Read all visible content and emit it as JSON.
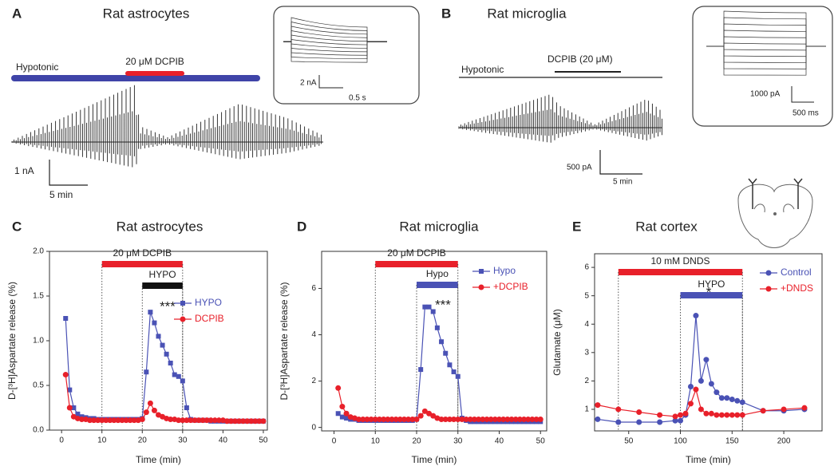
{
  "panel_a": {
    "letter": "A",
    "title": "Rat astrocytes",
    "solution": "Hypotonic",
    "drug": "20 μM DCPIB",
    "scale_y": "1 nA",
    "scale_x": "5 min",
    "inset_y": "2 nA",
    "inset_x": "0.5 s"
  },
  "panel_b": {
    "letter": "B",
    "title": "Rat microglia",
    "solution": "Hypotonic",
    "drug": "DCPIB (20 μM)",
    "scale_y": "500 pA",
    "scale_x": "5 min",
    "inset_y": "1000 pA",
    "inset_x": "500 ms"
  },
  "chart_data": [
    {
      "type": "line",
      "panel": "C",
      "title": "Rat astrocytes",
      "x_label": "Time (min)",
      "y_label": "D-[³H]Aspartate release (%)",
      "xlim": [
        -3,
        51
      ],
      "ylim": [
        0,
        2
      ],
      "xticks": [
        0,
        10,
        20,
        30,
        40,
        50
      ],
      "yticks": [
        {
          "value": 0,
          "label": "0.0"
        },
        {
          "value": 0.5,
          "label": "0.5"
        },
        {
          "value": 1,
          "label": "1.0"
        },
        {
          "value": 1.5,
          "label": "1.5"
        },
        {
          "value": 2,
          "label": "2.0"
        }
      ],
      "bars": [
        {
          "label": "20 μM DCPIB",
          "start": 10,
          "end": 30,
          "color": "#e8202a"
        },
        {
          "label": "HYPO",
          "start": 20,
          "end": 30,
          "color": "#111111"
        }
      ],
      "annotations": [
        "***"
      ],
      "x": [
        1,
        2,
        3,
        4,
        5,
        6,
        7,
        8,
        9,
        10,
        11,
        12,
        13,
        14,
        15,
        16,
        17,
        18,
        19,
        20,
        21,
        22,
        23,
        24,
        25,
        26,
        27,
        28,
        29,
        30,
        31,
        32,
        33,
        34,
        35,
        36,
        37,
        38,
        39,
        40,
        41,
        42,
        43,
        44,
        45,
        46,
        47,
        48,
        49,
        50
      ],
      "series": [
        {
          "name": "HYPO",
          "color": "#4a52b5",
          "marker": "square",
          "values": [
            1.25,
            0.45,
            0.25,
            0.18,
            0.15,
            0.14,
            0.13,
            0.13,
            0.12,
            0.12,
            0.12,
            0.12,
            0.12,
            0.12,
            0.12,
            0.12,
            0.12,
            0.12,
            0.12,
            0.13,
            0.65,
            1.32,
            1.2,
            1.05,
            0.95,
            0.85,
            0.75,
            0.62,
            0.6,
            0.55,
            0.25,
            0.12,
            0.11,
            0.11,
            0.11,
            0.11,
            0.1,
            0.1,
            0.1,
            0.1,
            0.1,
            0.1,
            0.1,
            0.1,
            0.1,
            0.1,
            0.1,
            0.1,
            0.1,
            0.1
          ]
        },
        {
          "name": "DCPIB",
          "color": "#e8202a",
          "marker": "circle",
          "values": [
            0.62,
            0.25,
            0.15,
            0.13,
            0.12,
            0.12,
            0.11,
            0.11,
            0.11,
            0.11,
            0.11,
            0.11,
            0.11,
            0.11,
            0.11,
            0.11,
            0.11,
            0.11,
            0.11,
            0.12,
            0.2,
            0.3,
            0.22,
            0.17,
            0.15,
            0.13,
            0.12,
            0.12,
            0.11,
            0.11,
            0.11,
            0.11,
            0.11,
            0.11,
            0.11,
            0.11,
            0.11,
            0.11,
            0.11,
            0.11,
            0.1,
            0.1,
            0.1,
            0.1,
            0.1,
            0.1,
            0.1,
            0.1,
            0.1,
            0.1
          ]
        }
      ]
    },
    {
      "type": "line",
      "panel": "D",
      "title": "Rat microglia",
      "x_label": "Time (min)",
      "y_label": "D-[³H]Aspartate release (%)",
      "xlim": [
        -3,
        51.5
      ],
      "ylim": [
        -0.15,
        7.6
      ],
      "xticks": [
        0,
        10,
        20,
        30,
        40,
        50
      ],
      "yticks": [
        0,
        2,
        4,
        6
      ],
      "bars": [
        {
          "label": "20 μM DCPIB",
          "start": 10,
          "end": 30,
          "color": "#e8202a"
        },
        {
          "label": "Hypo",
          "start": 20,
          "end": 30,
          "color": "#4a52b5"
        }
      ],
      "annotations": [
        "***"
      ],
      "x": [
        1,
        2,
        3,
        4,
        5,
        6,
        7,
        8,
        9,
        10,
        11,
        12,
        13,
        14,
        15,
        16,
        17,
        18,
        19,
        20,
        21,
        22,
        23,
        24,
        25,
        26,
        27,
        28,
        29,
        30,
        31,
        32,
        33,
        34,
        35,
        36,
        37,
        38,
        39,
        40,
        41,
        42,
        43,
        44,
        45,
        46,
        47,
        48,
        49,
        50
      ],
      "series": [
        {
          "name": "Hypo",
          "color": "#4a52b5",
          "marker": "square",
          "values": [
            0.6,
            0.45,
            0.4,
            0.35,
            0.35,
            0.3,
            0.3,
            0.3,
            0.3,
            0.3,
            0.3,
            0.3,
            0.3,
            0.3,
            0.3,
            0.3,
            0.3,
            0.3,
            0.3,
            0.35,
            2.5,
            5.2,
            5.2,
            5.0,
            4.3,
            3.7,
            3.2,
            2.7,
            2.4,
            2.2,
            0.4,
            0.3,
            0.25,
            0.25,
            0.25,
            0.25,
            0.25,
            0.25,
            0.25,
            0.25,
            0.25,
            0.25,
            0.25,
            0.25,
            0.25,
            0.25,
            0.25,
            0.25,
            0.25,
            0.25
          ]
        },
        {
          "name": "+DCPIB",
          "color": "#e8202a",
          "marker": "circle",
          "values": [
            1.7,
            0.9,
            0.6,
            0.45,
            0.4,
            0.35,
            0.35,
            0.35,
            0.35,
            0.35,
            0.35,
            0.35,
            0.35,
            0.35,
            0.35,
            0.35,
            0.35,
            0.35,
            0.35,
            0.35,
            0.5,
            0.7,
            0.6,
            0.5,
            0.4,
            0.35,
            0.35,
            0.35,
            0.35,
            0.35,
            0.35,
            0.35,
            0.35,
            0.35,
            0.35,
            0.35,
            0.35,
            0.35,
            0.35,
            0.35,
            0.35,
            0.35,
            0.35,
            0.35,
            0.35,
            0.35,
            0.35,
            0.35,
            0.35,
            0.35
          ]
        }
      ]
    },
    {
      "type": "line",
      "panel": "E",
      "title": "Rat cortex",
      "x_label": "Time (min)",
      "y_label": "Glutamate (μM)",
      "xlim": [
        17,
        237
      ],
      "ylim": [
        0.24,
        6.48
      ],
      "xticks": [
        50,
        100,
        150,
        200
      ],
      "yticks": [
        1,
        2,
        3,
        4,
        5,
        6
      ],
      "bars": [
        {
          "label": "10 mM DNDS",
          "start": 40,
          "end": 160,
          "color": "#e8202a"
        },
        {
          "label": "HYPO",
          "start": 100,
          "end": 160,
          "color": "#4a52b5"
        }
      ],
      "annotations": [
        "*"
      ],
      "x": [
        20,
        40,
        60,
        80,
        95,
        100,
        105,
        110,
        115,
        120,
        125,
        130,
        135,
        140,
        145,
        150,
        155,
        160,
        180,
        200,
        220
      ],
      "series": [
        {
          "name": "Control",
          "color": "#4a52b5",
          "marker": "circle",
          "values": [
            0.65,
            0.55,
            0.55,
            0.55,
            0.6,
            0.6,
            0.8,
            1.8,
            4.3,
            2.0,
            2.75,
            1.9,
            1.6,
            1.4,
            1.4,
            1.35,
            1.3,
            1.25,
            0.95,
            0.95,
            1.0
          ]
        },
        {
          "name": "+DNDS",
          "color": "#e8202a",
          "marker": "circle",
          "values": [
            1.15,
            1.0,
            0.9,
            0.8,
            0.75,
            0.8,
            0.85,
            1.2,
            1.7,
            1.0,
            0.85,
            0.85,
            0.8,
            0.8,
            0.8,
            0.8,
            0.8,
            0.8,
            0.95,
            1.0,
            1.05
          ]
        }
      ]
    }
  ]
}
